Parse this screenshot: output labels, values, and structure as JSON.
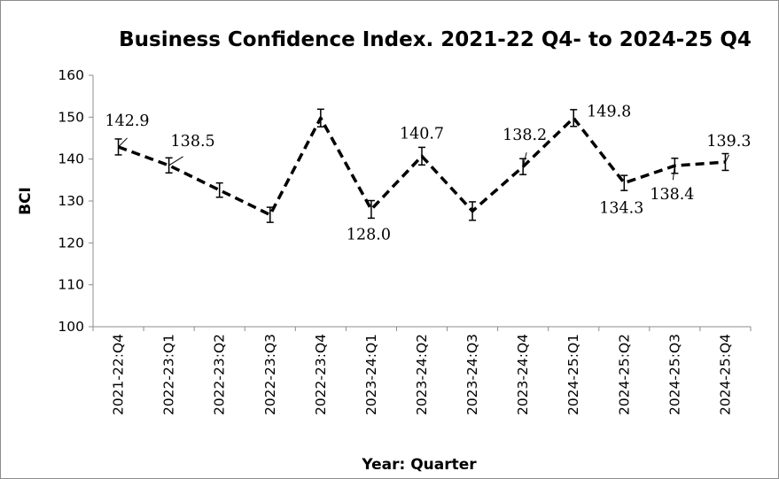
{
  "chart_data": {
    "type": "line",
    "title": "Business Confidence Index. 2021-22 Q4- to 2024-25 Q4",
    "xlabel": "Year: Quarter",
    "ylabel": "BCI",
    "ylim": [
      100,
      160
    ],
    "yticks": [
      100,
      110,
      120,
      130,
      140,
      150,
      160
    ],
    "grid": false,
    "legend": "none",
    "line_style": "dashed",
    "color": "#000000",
    "categories": [
      "2021-22:Q4",
      "2022-23:Q1",
      "2022-23:Q2",
      "2022-23:Q3",
      "2022-23:Q4",
      "2023-24:Q1",
      "2023-24:Q2",
      "2023-24:Q3",
      "2023-24:Q4",
      "2024-25:Q1",
      "2024-25:Q2",
      "2024-25:Q3",
      "2024-25:Q4"
    ],
    "values": [
      142.9,
      138.5,
      132.6,
      126.7,
      149.8,
      128.0,
      140.7,
      127.6,
      138.2,
      149.8,
      134.3,
      138.4,
      139.3
    ],
    "error_low": [
      141.0,
      136.7,
      130.9,
      124.9,
      147.7,
      125.9,
      138.6,
      125.4,
      136.3,
      147.8,
      132.5,
      136.6,
      137.3
    ],
    "error_high": [
      144.8,
      140.3,
      134.3,
      128.5,
      151.9,
      130.1,
      142.8,
      129.8,
      140.1,
      151.8,
      136.1,
      140.2,
      141.3
    ],
    "data_labels": [
      {
        "index": 0,
        "text": "142.9",
        "position": "above-left",
        "leader": true
      },
      {
        "index": 1,
        "text": "138.5",
        "position": "above-right",
        "leader": true
      },
      {
        "index": 5,
        "text": "128.0",
        "position": "below",
        "leader": false
      },
      {
        "index": 6,
        "text": "140.7",
        "position": "above",
        "leader": false
      },
      {
        "index": 8,
        "text": "138.2",
        "position": "above",
        "leader": true
      },
      {
        "index": 9,
        "text": "149.8",
        "position": "right",
        "leader": false
      },
      {
        "index": 10,
        "text": "134.3",
        "position": "below",
        "leader": false
      },
      {
        "index": 11,
        "text": "138.4",
        "position": "below",
        "leader": true
      },
      {
        "index": 12,
        "text": "139.3",
        "position": "above",
        "leader": true
      }
    ]
  }
}
